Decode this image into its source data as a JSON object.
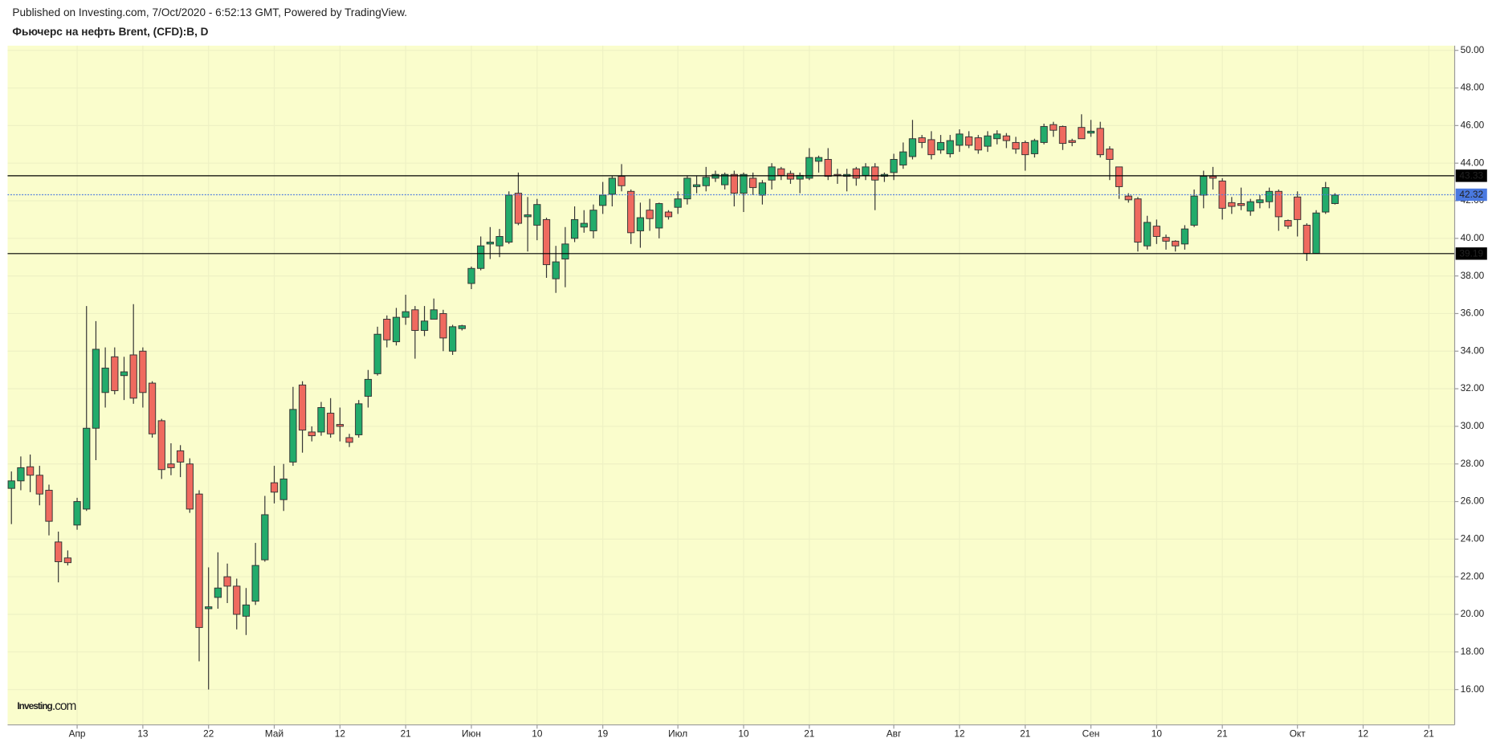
{
  "header": {
    "published": "Published on Investing.com, 7/Oct/2020 - 6:52:13 GMT, Powered by TradingView."
  },
  "watermark": {
    "brand": "Investing",
    "suffix": ".com"
  },
  "chart_data": {
    "type": "candlestick",
    "title": "Фьючерс на нефть Brent, (CFD):B, D",
    "categories": [
      null,
      null,
      null,
      null,
      null,
      null,
      null,
      "Апр",
      null,
      null,
      null,
      null,
      null,
      null,
      "13",
      null,
      null,
      null,
      null,
      null,
      null,
      "22",
      null,
      null,
      null,
      null,
      null,
      null,
      "Май",
      null,
      null,
      null,
      null,
      null,
      null,
      "12",
      null,
      null,
      null,
      null,
      null,
      null,
      "21",
      null,
      null,
      null,
      null,
      null,
      null,
      "Июн",
      null,
      null,
      null,
      null,
      null,
      null,
      "10",
      null,
      null,
      null,
      null,
      null,
      null,
      "19",
      null,
      null,
      null,
      null,
      null,
      null,
      null,
      "Июл",
      null,
      null,
      null,
      null,
      null,
      null,
      "10",
      null,
      null,
      null,
      null,
      null,
      null,
      "21",
      null,
      null,
      null,
      null,
      null,
      null,
      null,
      null,
      "Авг",
      null,
      null,
      null,
      null,
      null,
      null,
      "12",
      null,
      null,
      null,
      null,
      null,
      null,
      "21",
      null,
      null,
      null,
      null,
      null,
      null,
      "Сен",
      null,
      null,
      null,
      null,
      null,
      null,
      "10",
      null,
      null,
      null,
      null,
      null,
      null,
      "21",
      null,
      null,
      null,
      null,
      null,
      null,
      null,
      "Окт",
      null,
      null,
      null,
      null,
      null,
      null,
      "12",
      null,
      null,
      null,
      null,
      null,
      null,
      "21",
      null,
      null
    ],
    "open": [
      26.7,
      27.1,
      27.85,
      27.4,
      26.6,
      23.85,
      23.0,
      24.75,
      25.6,
      29.9,
      31.8,
      33.7,
      32.7,
      33.8,
      34.0,
      32.3,
      30.3,
      28.0,
      28.7,
      28.0,
      26.4,
      20.3,
      20.9,
      22.0,
      21.5,
      19.9,
      20.7,
      22.9,
      27.0,
      26.1,
      28.1,
      32.2,
      29.7,
      29.7,
      30.7,
      30.1,
      29.4,
      29.55,
      31.6,
      32.8,
      35.7,
      34.5,
      35.8,
      36.2,
      35.1,
      35.7,
      36.0,
      34.0,
      35.2,
      37.6,
      38.4,
      39.7,
      39.6,
      39.8,
      42.4,
      41.15,
      40.7,
      41.0,
      37.85,
      38.9,
      40.0,
      40.6,
      40.4,
      41.75,
      42.35,
      43.3,
      42.5,
      40.4,
      41.5,
      40.55,
      41.4,
      41.65,
      42.1,
      42.75,
      42.8,
      43.2,
      42.85,
      43.4,
      42.4,
      43.2,
      42.3,
      43.1,
      43.7,
      43.45,
      43.15,
      43.2,
      44.1,
      44.2,
      43.4,
      43.3,
      43.7,
      43.35,
      43.8,
      43.3,
      43.5,
      43.9,
      44.35,
      45.35,
      45.25,
      44.7,
      44.5,
      44.95,
      45.4,
      45.35,
      44.9,
      45.3,
      45.45,
      45.1,
      45.1,
      44.5,
      45.1,
      46.05,
      45.95,
      45.2,
      45.9,
      45.6,
      45.85,
      44.75,
      43.8,
      42.25,
      42.1,
      39.6,
      40.65,
      40.05,
      39.85,
      39.7,
      40.7,
      42.3,
      43.3,
      43.05,
      41.9,
      41.85,
      41.45,
      41.9,
      41.95,
      42.5,
      40.95,
      42.2,
      40.7,
      39.2,
      41.4,
      41.85,
      null,
      null,
      null,
      null,
      null,
      null,
      null,
      null,
      null,
      null,
      null,
      null
    ],
    "high": [
      27.6,
      28.4,
      28.5,
      27.9,
      26.9,
      24.4,
      23.4,
      26.2,
      36.4,
      35.6,
      34.2,
      34.2,
      33.7,
      36.5,
      34.2,
      32.4,
      30.4,
      29.1,
      29.0,
      28.3,
      26.6,
      22.5,
      23.3,
      22.7,
      21.9,
      21.4,
      23.8,
      26.3,
      27.9,
      28.0,
      32.1,
      32.4,
      30.0,
      31.3,
      31.5,
      31.0,
      29.6,
      31.4,
      33.0,
      35.3,
      35.9,
      36.3,
      37.0,
      36.4,
      36.4,
      36.8,
      36.2,
      35.4,
      35.4,
      38.5,
      40.1,
      40.6,
      40.5,
      42.5,
      43.5,
      42.2,
      42.1,
      41.1,
      39.6,
      40.6,
      41.7,
      41.5,
      41.8,
      43.0,
      43.3,
      43.95,
      42.6,
      41.9,
      42.1,
      41.9,
      41.5,
      42.5,
      43.3,
      43.3,
      43.8,
      43.6,
      43.5,
      43.6,
      43.5,
      43.5,
      43.1,
      44.0,
      43.8,
      43.6,
      43.5,
      44.8,
      44.4,
      44.8,
      43.7,
      43.7,
      43.8,
      44.0,
      44.0,
      43.5,
      44.5,
      45.1,
      46.3,
      45.5,
      45.7,
      45.5,
      45.5,
      45.8,
      45.7,
      45.5,
      45.7,
      45.75,
      45.6,
      45.4,
      45.2,
      45.3,
      46.1,
      46.2,
      46.0,
      45.3,
      46.6,
      46.3,
      46.2,
      44.9,
      43.8,
      42.4,
      42.2,
      41.2,
      41.0,
      40.2,
      39.9,
      40.7,
      42.6,
      43.6,
      43.8,
      43.2,
      42.2,
      42.7,
      42.1,
      42.3,
      42.7,
      42.6,
      41.0,
      42.5,
      40.8,
      41.5,
      43.0,
      42.4,
      null,
      null,
      null,
      null,
      null,
      null,
      null,
      null,
      null,
      null,
      null,
      null
    ],
    "low": [
      24.8,
      26.6,
      26.5,
      25.8,
      24.2,
      21.7,
      22.6,
      24.5,
      25.5,
      28.2,
      31.0,
      31.7,
      31.4,
      31.2,
      31.0,
      29.4,
      27.2,
      27.4,
      27.3,
      25.4,
      17.5,
      16.0,
      20.3,
      20.6,
      19.2,
      18.9,
      20.5,
      22.8,
      25.9,
      25.5,
      27.9,
      28.6,
      29.2,
      29.5,
      29.4,
      29.2,
      28.9,
      29.4,
      31.0,
      32.7,
      34.2,
      34.3,
      35.4,
      33.6,
      34.8,
      35.7,
      34.0,
      33.8,
      35.1,
      37.3,
      38.3,
      38.9,
      39.0,
      39.7,
      40.7,
      39.3,
      39.9,
      37.9,
      37.1,
      37.4,
      39.8,
      40.3,
      40.0,
      41.3,
      41.7,
      42.5,
      39.7,
      39.5,
      40.4,
      40.0,
      41.0,
      41.3,
      41.8,
      42.4,
      42.5,
      43.0,
      42.6,
      41.7,
      41.4,
      42.3,
      41.8,
      42.6,
      43.1,
      42.9,
      42.4,
      43.1,
      43.5,
      43.1,
      42.9,
      42.5,
      42.8,
      43.1,
      41.5,
      43.0,
      43.1,
      43.7,
      44.2,
      44.8,
      44.2,
      44.5,
      44.3,
      44.6,
      44.8,
      44.5,
      44.6,
      45.0,
      44.8,
      44.5,
      43.6,
      44.3,
      45.0,
      45.4,
      44.7,
      44.9,
      45.3,
      45.4,
      44.3,
      43.1,
      42.1,
      41.9,
      39.3,
      39.4,
      39.7,
      39.4,
      39.3,
      39.4,
      40.6,
      41.6,
      42.6,
      41.0,
      41.3,
      41.5,
      41.2,
      41.6,
      41.6,
      40.4,
      40.5,
      40.1,
      38.8,
      39.2,
      41.3,
      41.8,
      null,
      null,
      null,
      null,
      null,
      null,
      null,
      null,
      null,
      null,
      null,
      null
    ],
    "close": [
      27.1,
      27.8,
      27.4,
      26.4,
      24.95,
      22.8,
      22.75,
      26.0,
      29.9,
      34.1,
      33.1,
      31.9,
      32.9,
      31.5,
      31.8,
      29.6,
      27.7,
      27.8,
      28.1,
      25.6,
      19.3,
      20.4,
      21.4,
      21.5,
      20.0,
      20.5,
      22.6,
      25.3,
      26.5,
      27.2,
      30.9,
      29.8,
      29.5,
      31.0,
      29.6,
      30.0,
      29.15,
      31.2,
      32.5,
      34.9,
      34.6,
      35.8,
      36.1,
      35.1,
      35.6,
      36.2,
      34.7,
      35.3,
      35.35,
      38.4,
      39.6,
      39.8,
      40.1,
      42.3,
      40.8,
      41.25,
      41.8,
      38.6,
      38.75,
      39.7,
      41.0,
      40.8,
      41.5,
      42.3,
      43.2,
      42.8,
      40.3,
      41.1,
      41.05,
      41.85,
      41.15,
      42.1,
      43.2,
      42.85,
      43.25,
      43.4,
      43.4,
      42.4,
      43.4,
      42.7,
      42.95,
      43.8,
      43.35,
      43.15,
      43.35,
      44.3,
      44.3,
      43.3,
      43.35,
      43.4,
      43.2,
      43.8,
      43.1,
      43.4,
      44.2,
      44.6,
      45.3,
      45.1,
      44.45,
      45.1,
      45.2,
      45.55,
      44.95,
      44.7,
      45.45,
      45.55,
      45.2,
      44.75,
      44.45,
      45.2,
      45.95,
      45.75,
      45.05,
      45.1,
      45.3,
      45.7,
      44.45,
      44.2,
      42.75,
      42.05,
      39.8,
      40.85,
      40.1,
      39.85,
      39.6,
      40.5,
      42.25,
      43.3,
      43.2,
      41.6,
      41.7,
      41.75,
      41.95,
      42.05,
      42.5,
      41.15,
      40.65,
      41.0,
      39.2,
      41.35,
      42.7,
      42.3,
      null,
      null,
      null,
      null,
      null,
      null,
      null,
      null,
      null,
      null,
      null,
      null
    ],
    "up_color": "#22ab6b",
    "down_color": "#ef6a5f",
    "ylim": [
      14.12,
      50.25
    ],
    "yticks": [
      {
        "value": 16,
        "label": "16.00"
      },
      {
        "value": 18,
        "label": "18.00"
      },
      {
        "value": 20,
        "label": "20.00"
      },
      {
        "value": 22,
        "label": "22.00"
      },
      {
        "value": 24,
        "label": "24.00"
      },
      {
        "value": 26,
        "label": "26.00"
      },
      {
        "value": 28,
        "label": "28.00"
      },
      {
        "value": 30,
        "label": "30.00"
      },
      {
        "value": 32,
        "label": "32.00"
      },
      {
        "value": 34,
        "label": "34.00"
      },
      {
        "value": 36,
        "label": "36.00"
      },
      {
        "value": 38,
        "label": "38.00"
      },
      {
        "value": 40,
        "label": "40.00"
      },
      {
        "value": 42,
        "label": "42.00"
      },
      {
        "value": 44,
        "label": "44.00"
      },
      {
        "value": 46,
        "label": "46.00"
      },
      {
        "value": 48,
        "label": "48.00"
      },
      {
        "value": 50,
        "label": "50.00"
      }
    ],
    "grid": true,
    "levels": [
      43.33,
      39.19
    ],
    "level_color": "#000000",
    "last_price": 42.32,
    "last_price_color": "#4a79e0"
  }
}
